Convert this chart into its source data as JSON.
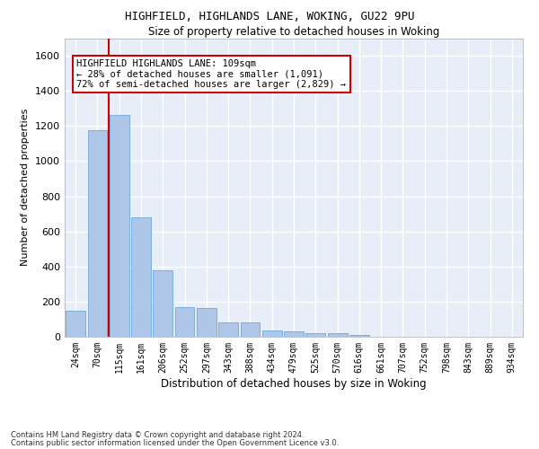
{
  "title1": "HIGHFIELD, HIGHLANDS LANE, WOKING, GU22 9PU",
  "title2": "Size of property relative to detached houses in Woking",
  "xlabel": "Distribution of detached houses by size in Woking",
  "ylabel": "Number of detached properties",
  "bar_color": "#aec6e8",
  "bar_edge_color": "#5a9fd4",
  "categories": [
    "24sqm",
    "70sqm",
    "115sqm",
    "161sqm",
    "206sqm",
    "252sqm",
    "297sqm",
    "343sqm",
    "388sqm",
    "434sqm",
    "479sqm",
    "525sqm",
    "570sqm",
    "616sqm",
    "661sqm",
    "707sqm",
    "752sqm",
    "798sqm",
    "843sqm",
    "889sqm",
    "934sqm"
  ],
  "values": [
    148,
    1175,
    1265,
    680,
    380,
    170,
    165,
    82,
    82,
    37,
    30,
    22,
    22,
    12,
    0,
    0,
    0,
    0,
    0,
    0,
    0
  ],
  "ylim": [
    0,
    1700
  ],
  "yticks": [
    0,
    200,
    400,
    600,
    800,
    1000,
    1200,
    1400,
    1600
  ],
  "vline_x_index": 2,
  "annotation_box_text": "HIGHFIELD HIGHLANDS LANE: 109sqm\n← 28% of detached houses are smaller (1,091)\n72% of semi-detached houses are larger (2,829) →",
  "footer_line1": "Contains HM Land Registry data © Crown copyright and database right 2024.",
  "footer_line2": "Contains public sector information licensed under the Open Government Licence v3.0.",
  "background_color": "#e8eef8",
  "fig_background_color": "#ffffff",
  "grid_color": "#ffffff",
  "vline_color": "#cc0000",
  "box_edge_color": "#cc0000"
}
